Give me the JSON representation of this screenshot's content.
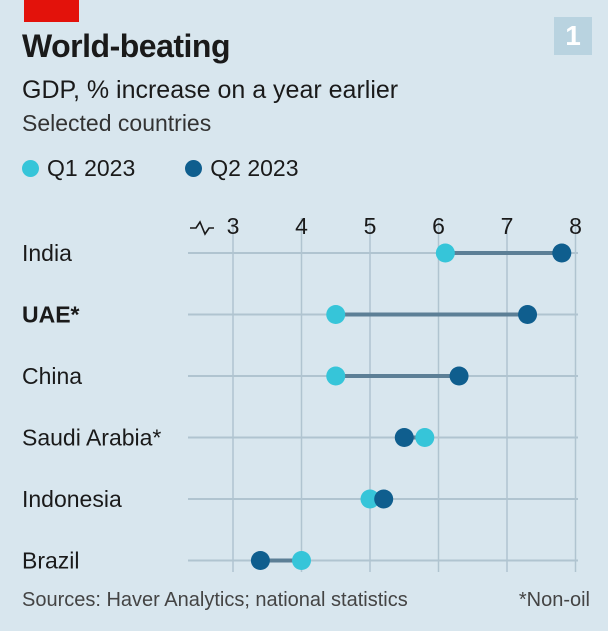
{
  "badge": "1",
  "title": "World-beating",
  "subtitle": "GDP, % increase on a year earlier",
  "subsubtitle": "Selected countries",
  "footer": {
    "sources": "Sources: Haver Analytics; national statistics",
    "note": "*Non-oil"
  },
  "colors": {
    "q1": "#36c5d9",
    "q2": "#0f5e8e",
    "connector": "#5c7f96",
    "grid": "#b0c4d0",
    "brand_red": "#e3120b"
  },
  "chart_data": {
    "type": "dumbbell",
    "title": "World-beating",
    "subtitle": "GDP, % increase on a year earlier",
    "xlim": [
      2.5,
      8
    ],
    "axis_break": true,
    "xticks": [
      3,
      4,
      5,
      6,
      7,
      8
    ],
    "tick_labels": [
      "3",
      "4",
      "5",
      "6",
      "7",
      "8"
    ],
    "series": [
      {
        "name": "Q1 2023",
        "values": [
          6.1,
          4.5,
          4.5,
          5.8,
          5.0,
          4.0
        ]
      },
      {
        "name": "Q2 2023",
        "values": [
          7.8,
          7.3,
          6.3,
          5.5,
          5.2,
          3.4
        ]
      }
    ],
    "categories": [
      "India",
      "UAE*",
      "China",
      "Saudi Arabia*",
      "Indonesia",
      "Brazil"
    ],
    "bold_categories": [
      "UAE*"
    ]
  }
}
